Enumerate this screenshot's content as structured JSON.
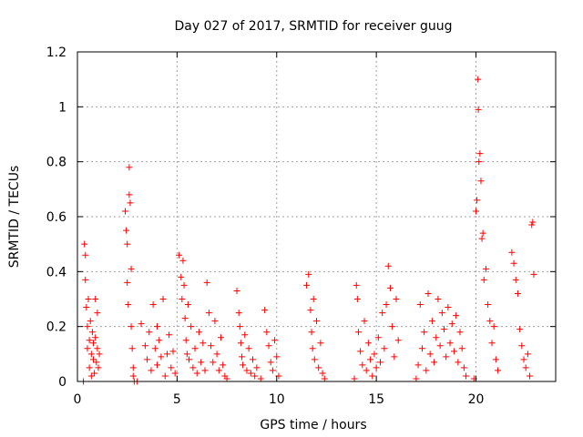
{
  "chart_data": {
    "type": "scatter",
    "title": "Day 027 of 2017, SRMTID for receiver guug",
    "xlabel": "GPS time / hours",
    "ylabel": "SRMTID / TECUs",
    "xlim": [
      0,
      24
    ],
    "ylim": [
      0,
      1.2
    ],
    "xticks": [
      0,
      5,
      10,
      15,
      20
    ],
    "xtick_labels": [
      "0",
      "5",
      "10",
      "15",
      "20"
    ],
    "yticks": [
      0,
      0.2,
      0.4,
      0.6,
      0.8,
      1.0,
      1.2
    ],
    "ytick_labels": [
      "0",
      "0.2",
      "0.4",
      "0.6",
      "0.8",
      "1",
      "1.2"
    ],
    "grid": true,
    "marker": "+",
    "color": "#ff0000",
    "series": [
      {
        "name": "SRMTID",
        "x": [
          0.3,
          0.35,
          0.4,
          0.4,
          0.45,
          0.5,
          0.5,
          0.55,
          0.6,
          0.6,
          0.65,
          0.7,
          0.7,
          0.75,
          0.8,
          0.8,
          0.85,
          0.9,
          0.9,
          0.95,
          1.0,
          1.0,
          1.05,
          1.1,
          2.4,
          2.45,
          2.5,
          2.5,
          2.55,
          2.6,
          2.6,
          2.65,
          2.7,
          2.7,
          2.75,
          2.8,
          2.8,
          2.85,
          3.0,
          3.2,
          3.4,
          3.5,
          3.6,
          3.7,
          3.8,
          3.9,
          4.0,
          4.0,
          4.1,
          4.2,
          4.3,
          4.4,
          4.5,
          4.6,
          4.7,
          4.8,
          4.9,
          5.1,
          5.2,
          5.25,
          5.3,
          5.35,
          5.4,
          5.45,
          5.5,
          5.55,
          5.6,
          5.7,
          5.8,
          5.9,
          6.0,
          6.1,
          6.2,
          6.3,
          6.4,
          6.5,
          6.6,
          6.7,
          6.8,
          6.9,
          7.0,
          7.1,
          7.2,
          7.3,
          7.4,
          7.5,
          8.0,
          8.1,
          8.15,
          8.2,
          8.25,
          8.3,
          8.4,
          8.5,
          8.6,
          8.7,
          8.8,
          8.9,
          9.0,
          9.2,
          9.4,
          9.5,
          9.6,
          9.7,
          9.8,
          9.9,
          10.0,
          10.1,
          11.5,
          11.6,
          11.7,
          11.75,
          11.8,
          11.85,
          11.9,
          12.0,
          12.1,
          12.2,
          12.3,
          12.4,
          13.9,
          14.0,
          14.05,
          14.1,
          14.2,
          14.3,
          14.4,
          14.5,
          14.6,
          14.7,
          14.8,
          14.9,
          15.0,
          15.1,
          15.2,
          15.3,
          15.4,
          15.5,
          15.6,
          15.7,
          15.8,
          15.9,
          16.0,
          16.1,
          17.0,
          17.1,
          17.2,
          17.3,
          17.4,
          17.5,
          17.6,
          17.7,
          17.8,
          17.9,
          18.0,
          18.1,
          18.2,
          18.3,
          18.4,
          18.5,
          18.6,
          18.7,
          18.8,
          18.9,
          19.0,
          19.1,
          19.2,
          19.3,
          19.4,
          19.5,
          19.9,
          20.0,
          20.05,
          20.1,
          20.12,
          20.15,
          20.2,
          20.25,
          20.3,
          20.35,
          20.4,
          20.5,
          20.6,
          20.7,
          20.8,
          20.9,
          21.0,
          21.1,
          21.8,
          21.9,
          22.0,
          22.1,
          22.2,
          22.3,
          22.4,
          22.5,
          22.6,
          22.7,
          22.8,
          22.85,
          22.9
        ],
        "y": [
          0.0,
          0.5,
          0.46,
          0.37,
          0.27,
          0.2,
          0.12,
          0.3,
          0.15,
          0.05,
          0.22,
          0.1,
          0.02,
          0.18,
          0.08,
          0.14,
          0.03,
          0.3,
          0.16,
          0.07,
          0.25,
          0.12,
          0.05,
          0.1,
          0.62,
          0.55,
          0.5,
          0.36,
          0.28,
          0.78,
          0.68,
          0.65,
          0.41,
          0.2,
          0.12,
          0.05,
          0.02,
          0.0,
          0.0,
          0.21,
          0.13,
          0.08,
          0.18,
          0.04,
          0.28,
          0.12,
          0.06,
          0.2,
          0.15,
          0.09,
          0.3,
          0.02,
          0.1,
          0.17,
          0.05,
          0.11,
          0.03,
          0.46,
          0.38,
          0.3,
          0.44,
          0.35,
          0.23,
          0.15,
          0.1,
          0.28,
          0.08,
          0.2,
          0.05,
          0.12,
          0.03,
          0.18,
          0.07,
          0.14,
          0.04,
          0.36,
          0.25,
          0.13,
          0.07,
          0.22,
          0.1,
          0.04,
          0.16,
          0.06,
          0.02,
          0.01,
          0.33,
          0.25,
          0.2,
          0.14,
          0.09,
          0.06,
          0.17,
          0.04,
          0.12,
          0.03,
          0.08,
          0.02,
          0.05,
          0.01,
          0.26,
          0.18,
          0.13,
          0.07,
          0.04,
          0.15,
          0.09,
          0.02,
          0.35,
          0.39,
          0.26,
          0.18,
          0.12,
          0.3,
          0.08,
          0.22,
          0.05,
          0.14,
          0.03,
          0.01,
          0.01,
          0.35,
          0.3,
          0.18,
          0.11,
          0.06,
          0.22,
          0.04,
          0.14,
          0.08,
          0.02,
          0.1,
          0.05,
          0.16,
          0.07,
          0.25,
          0.12,
          0.28,
          0.42,
          0.34,
          0.2,
          0.09,
          0.3,
          0.15,
          0.01,
          0.06,
          0.28,
          0.12,
          0.18,
          0.04,
          0.32,
          0.1,
          0.22,
          0.07,
          0.16,
          0.3,
          0.13,
          0.25,
          0.19,
          0.09,
          0.27,
          0.14,
          0.21,
          0.11,
          0.24,
          0.07,
          0.18,
          0.12,
          0.05,
          0.02,
          0.01,
          0.62,
          0.66,
          1.1,
          0.99,
          0.8,
          0.83,
          0.73,
          0.52,
          0.54,
          0.37,
          0.41,
          0.28,
          0.22,
          0.14,
          0.2,
          0.08,
          0.04,
          0.47,
          0.43,
          0.37,
          0.32,
          0.19,
          0.13,
          0.08,
          0.05,
          0.1,
          0.02,
          0.57,
          0.58,
          0.39
        ]
      }
    ]
  }
}
